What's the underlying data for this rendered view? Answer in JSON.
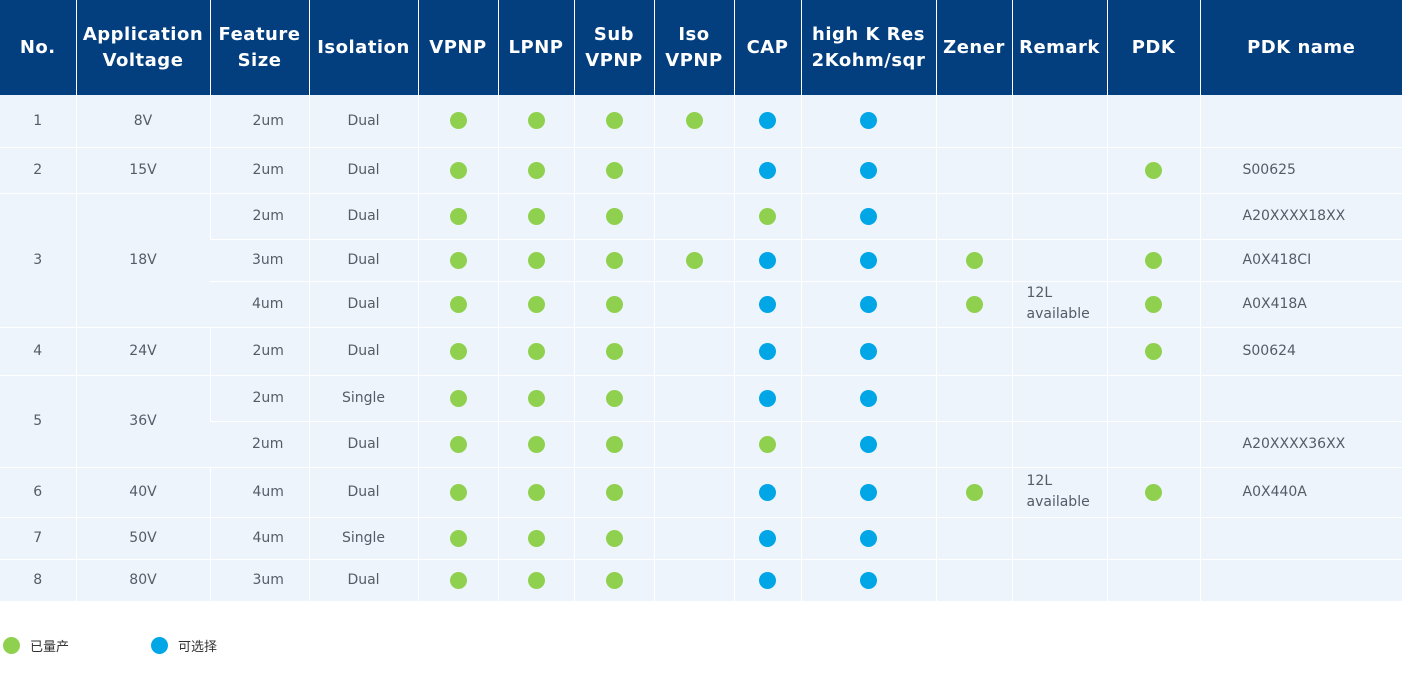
{
  "colors": {
    "header_bg": "#033f7f",
    "row_bg": "#eef4fc",
    "green_dot": "#8fd14f",
    "blue_dot": "#00a6e6"
  },
  "headers": {
    "no": "No.",
    "app_voltage": [
      "Application",
      "Voltage"
    ],
    "feature_size": [
      "Feature",
      "Size"
    ],
    "isolation": "Isolation",
    "vpnp": "VPNP",
    "lpnp": "LPNP",
    "sub_vpnp": [
      "Sub",
      "VPNP"
    ],
    "iso_vpnp": [
      "Iso",
      "VPNP"
    ],
    "cap": "CAP",
    "high_k_res": [
      "high K Res",
      "2Kohm/sqr"
    ],
    "zener": "Zener",
    "remark": "Remark",
    "pdk": "PDK",
    "pdk_name": "PDK name"
  },
  "rows": [
    {
      "no": "1",
      "voltage": "8V",
      "feature": "2um",
      "isolation": "Dual",
      "vpnp": "green",
      "lpnp": "green",
      "sub_vpnp": "green",
      "iso_vpnp": "green",
      "cap": "blue",
      "hkres": "blue",
      "zener": "",
      "remark": [
        "",
        ""
      ],
      "pdk": "",
      "pdk_name": ""
    },
    {
      "no": "2",
      "voltage": "15V",
      "feature": "2um",
      "isolation": "Dual",
      "vpnp": "green",
      "lpnp": "green",
      "sub_vpnp": "green",
      "iso_vpnp": "",
      "cap": "blue",
      "hkres": "blue",
      "zener": "",
      "remark": [
        "",
        ""
      ],
      "pdk": "green",
      "pdk_name": "S00625"
    },
    {
      "no": "3",
      "voltage": "18V",
      "feature": "2um",
      "isolation": "Dual",
      "vpnp": "green",
      "lpnp": "green",
      "sub_vpnp": "green",
      "iso_vpnp": "",
      "cap": "green",
      "hkres": "blue",
      "zener": "",
      "remark": [
        "",
        ""
      ],
      "pdk": "",
      "pdk_name": "A20XXXX18XX"
    },
    {
      "no": "",
      "voltage": "",
      "feature": "3um",
      "isolation": "Dual",
      "vpnp": "green",
      "lpnp": "green",
      "sub_vpnp": "green",
      "iso_vpnp": "green",
      "cap": "blue",
      "hkres": "blue",
      "zener": "green",
      "remark": [
        "",
        ""
      ],
      "pdk": "green",
      "pdk_name": "A0X418CI"
    },
    {
      "no": "",
      "voltage": "",
      "feature": "4um",
      "isolation": "Dual",
      "vpnp": "green",
      "lpnp": "green",
      "sub_vpnp": "green",
      "iso_vpnp": "",
      "cap": "blue",
      "hkres": "blue",
      "zener": "green",
      "remark": [
        "12L",
        "available"
      ],
      "pdk": "green",
      "pdk_name": "A0X418A"
    },
    {
      "no": "4",
      "voltage": "24V",
      "feature": "2um",
      "isolation": "Dual",
      "vpnp": "green",
      "lpnp": "green",
      "sub_vpnp": "green",
      "iso_vpnp": "",
      "cap": "blue",
      "hkres": "blue",
      "zener": "",
      "remark": [
        "",
        ""
      ],
      "pdk": "green",
      "pdk_name": "S00624"
    },
    {
      "no": "5",
      "voltage": "36V",
      "feature": "2um",
      "isolation": "Single",
      "vpnp": "green",
      "lpnp": "green",
      "sub_vpnp": "green",
      "iso_vpnp": "",
      "cap": "blue",
      "hkres": "blue",
      "zener": "",
      "remark": [
        "",
        ""
      ],
      "pdk": "",
      "pdk_name": ""
    },
    {
      "no": "",
      "voltage": "",
      "feature": "2um",
      "isolation": "Dual",
      "vpnp": "green",
      "lpnp": "green",
      "sub_vpnp": "green",
      "iso_vpnp": "",
      "cap": "green",
      "hkres": "blue",
      "zener": "",
      "remark": [
        "",
        ""
      ],
      "pdk": "",
      "pdk_name": "A20XXXX36XX"
    },
    {
      "no": "6",
      "voltage": "40V",
      "feature": "4um",
      "isolation": "Dual",
      "vpnp": "green",
      "lpnp": "green",
      "sub_vpnp": "green",
      "iso_vpnp": "",
      "cap": "blue",
      "hkres": "blue",
      "zener": "green",
      "remark": [
        "12L",
        "available"
      ],
      "pdk": "green",
      "pdk_name": "A0X440A"
    },
    {
      "no": "7",
      "voltage": "50V",
      "feature": "4um",
      "isolation": "Single",
      "vpnp": "green",
      "lpnp": "green",
      "sub_vpnp": "green",
      "iso_vpnp": "",
      "cap": "blue",
      "hkres": "blue",
      "zener": "",
      "remark": [
        "",
        ""
      ],
      "pdk": "",
      "pdk_name": ""
    },
    {
      "no": "8",
      "voltage": "80V",
      "feature": "3um",
      "isolation": "Dual",
      "vpnp": "green",
      "lpnp": "green",
      "sub_vpnp": "green",
      "iso_vpnp": "",
      "cap": "blue",
      "hkres": "blue",
      "zener": "",
      "remark": [
        "",
        ""
      ],
      "pdk": "",
      "pdk_name": ""
    }
  ],
  "legend": {
    "green_label": "已量产",
    "blue_label": "可选择"
  }
}
